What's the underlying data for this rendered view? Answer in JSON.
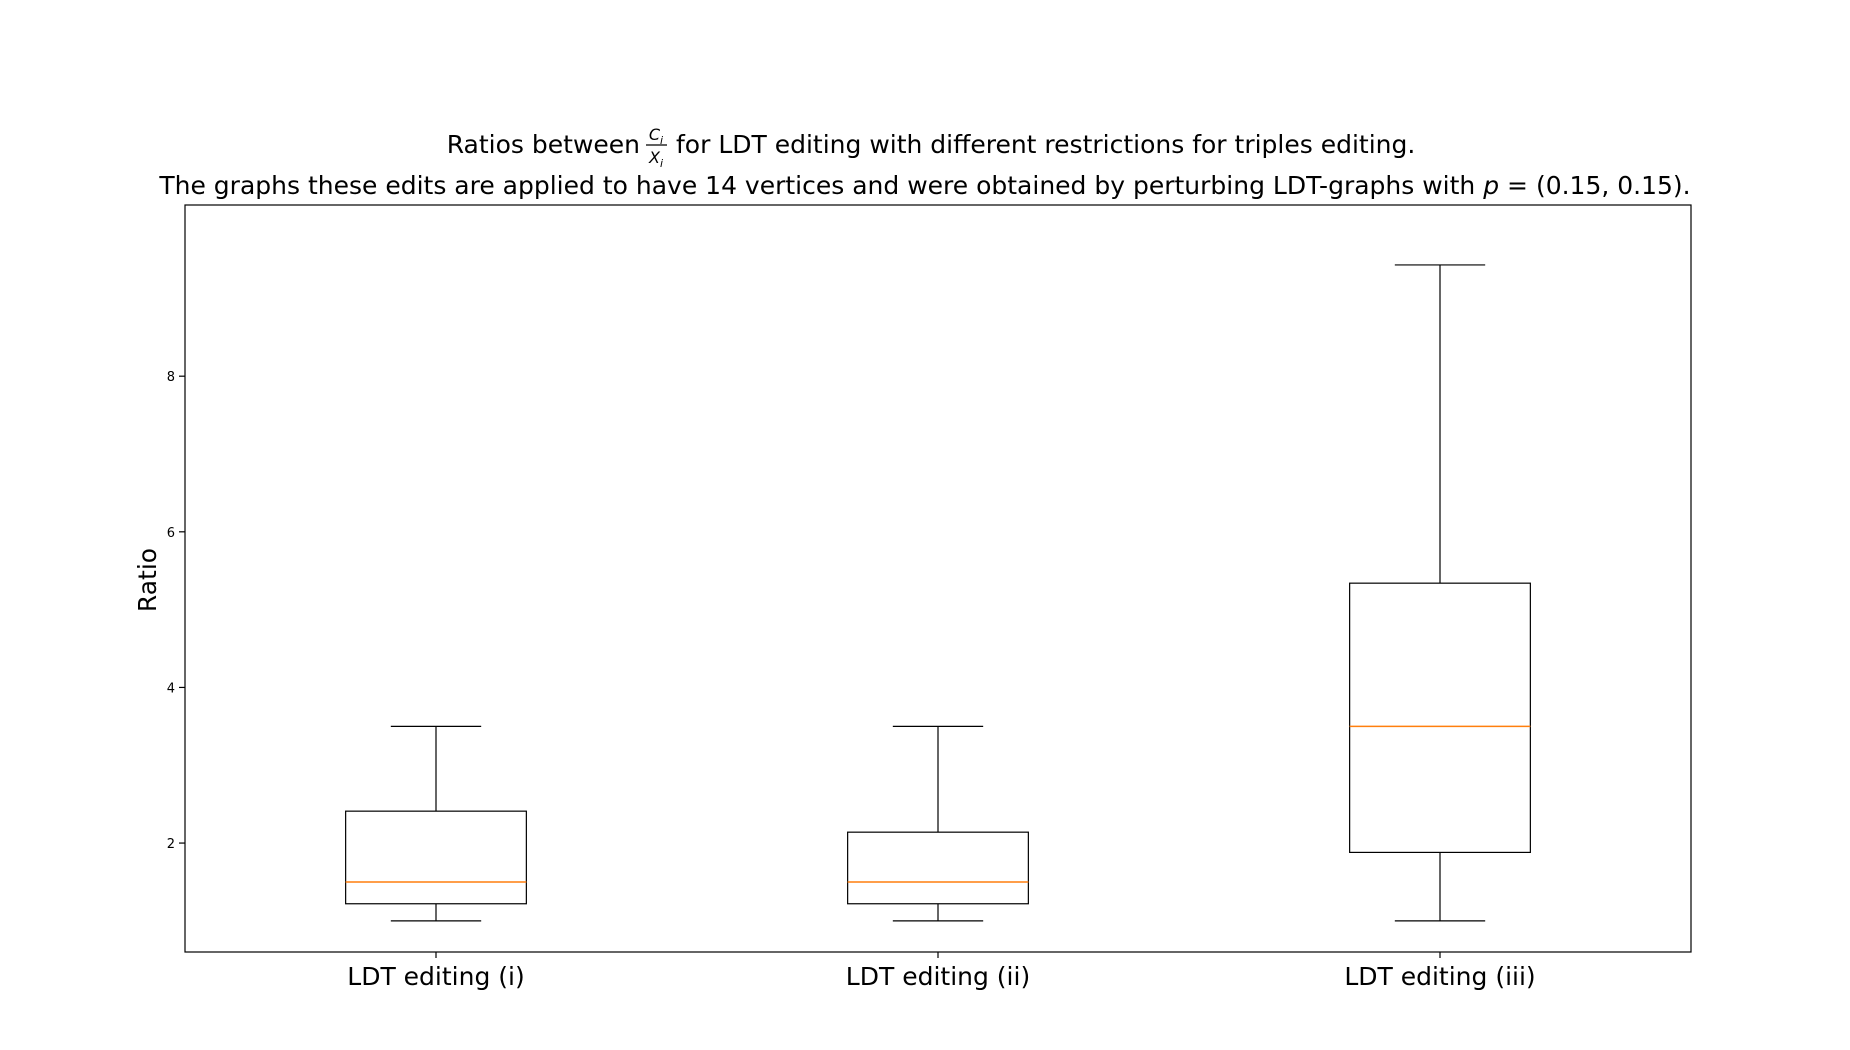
{
  "chart_data": {
    "type": "box",
    "title": {
      "line1_prefix": "Ratios between",
      "frac_num_base": "C",
      "frac_den_base": "X",
      "frac_sub": "i",
      "line1_suffix": "for LDT editing with different restrictions for triples editing.",
      "line2_prefix": "The graphs these edits are applied to have 14 vertices and were obtained by perturbing LDT-graphs with",
      "line2_var": "p",
      "line2_suffix": "= (0.15, 0.15)."
    },
    "xlabel": "",
    "ylabel": "Ratio",
    "ylim": [
      0.6,
      10.2
    ],
    "yticks": [
      2,
      4,
      6,
      8
    ],
    "grid": false,
    "categories": [
      "LDT editing (i)",
      "LDT editing (ii)",
      "LDT editing (iii)"
    ],
    "boxes": [
      {
        "whisker_low": 1.0,
        "q1": 1.22,
        "median": 1.5,
        "q3": 2.41,
        "whisker_high": 3.5
      },
      {
        "whisker_low": 1.0,
        "q1": 1.22,
        "median": 1.5,
        "q3": 2.14,
        "whisker_high": 3.5
      },
      {
        "whisker_low": 1.0,
        "q1": 1.88,
        "median": 3.5,
        "q3": 5.34,
        "whisker_high": 9.43
      }
    ],
    "colors": {
      "box": "#000000",
      "median": "#ff7f0e"
    }
  }
}
